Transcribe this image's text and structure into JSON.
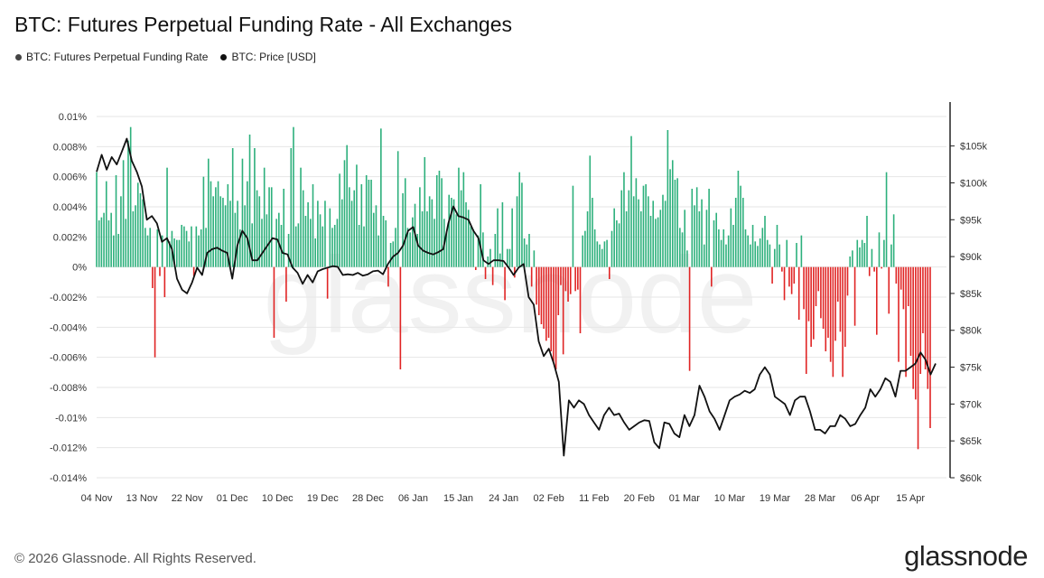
{
  "header": {
    "title": "BTC: Futures Perpetual Funding Rate - All Exchanges"
  },
  "legend": [
    {
      "label": "BTC: Futures Perpetual Funding Rate",
      "color": "#444444"
    },
    {
      "label": "BTC: Price [USD]",
      "color": "#111111"
    }
  ],
  "footer": {
    "copyright": "© 2026 Glassnode. All Rights Reserved.",
    "brand": "glassnode",
    "watermark": "glassnode"
  },
  "colors": {
    "positive": "#2db07c",
    "negative": "#e02424",
    "price": "#111111",
    "grid": "#e6e6e6"
  },
  "chart_data": {
    "type": "bar",
    "title": "BTC: Futures Perpetual Funding Rate - All Exchanges",
    "x_tick_labels": [
      "04 Nov",
      "13 Nov",
      "22 Nov",
      "01 Dec",
      "10 Dec",
      "19 Dec",
      "28 Dec",
      "06 Jan",
      "15 Jan",
      "24 Jan",
      "02 Feb",
      "11 Feb",
      "20 Feb",
      "01 Mar",
      "10 Mar",
      "19 Mar",
      "28 Mar",
      "06 Apr",
      "15 Apr"
    ],
    "x_range": [
      "04 Nov",
      "20 Apr"
    ],
    "left_axis": {
      "ylim": [
        -0.014,
        0.01
      ],
      "ticks": [
        0.01,
        0.008,
        0.006,
        0.004,
        0.002,
        0,
        -0.002,
        -0.004,
        -0.006,
        -0.008,
        -0.01,
        -0.012,
        -0.014
      ],
      "tick_labels": [
        "0.01%",
        "0.008%",
        "0.006%",
        "0.004%",
        "0.002%",
        "0%",
        "-0.002%",
        "-0.004%",
        "-0.006%",
        "-0.008%",
        "-0.01%",
        "-0.012%",
        "-0.014%"
      ]
    },
    "right_axis": {
      "ylim": [
        60000,
        109000
      ],
      "ticks": [
        105000,
        100000,
        95000,
        90000,
        85000,
        80000,
        75000,
        70000,
        65000,
        60000
      ],
      "tick_labels": [
        "$105k",
        "$100k",
        "$95k",
        "$90k",
        "$85k",
        "$80k",
        "$75k",
        "$70k",
        "$65k",
        "$60k"
      ]
    },
    "grid": true,
    "series": [
      {
        "name": "BTC: Futures Perpetual Funding Rate",
        "type": "bar",
        "axis": "left",
        "values": [
          0.0063,
          0.0031,
          0.0033,
          0.0036,
          0.0057,
          0.0031,
          0.0036,
          0.0021,
          0.0061,
          0.0022,
          0.0047,
          0.0071,
          0.0032,
          0.0084,
          0.0093,
          0.0037,
          0.0041,
          0.0056,
          0.0049,
          0.0045,
          0.0026,
          0.0021,
          0.0026,
          -0.0014,
          -0.006,
          0.0025,
          -0.0006,
          0.0021,
          -0.002,
          0.0066,
          0.0017,
          0.0024,
          0.0019,
          0.0018,
          0.0018,
          0.0028,
          0.0027,
          0.0024,
          0.0017,
          0.0027,
          -0.0006,
          0.0027,
          0.0021,
          0.0025,
          0.006,
          0.0026,
          0.0072,
          0.0057,
          0.0047,
          0.0053,
          0.0057,
          0.0047,
          0.0046,
          0.0041,
          0.0055,
          0.0044,
          0.0079,
          0.0036,
          0.0044,
          0.0025,
          0.0072,
          0.0041,
          0.0057,
          0.0088,
          0.0029,
          0.0079,
          0.0051,
          0.0047,
          0.0032,
          0.0066,
          0.0035,
          0.0053,
          0.0053,
          -0.0047,
          0.0032,
          0.0036,
          0.0028,
          0.0052,
          -0.0023,
          0.0022,
          0.0079,
          0.0093,
          0.0027,
          0.0029,
          0.0066,
          0.0051,
          0.0034,
          0.0043,
          0.0032,
          0.0055,
          0.0019,
          0.0044,
          0.0035,
          0.0027,
          0.0044,
          -0.0021,
          0.0039,
          0.0026,
          0.0028,
          0.0032,
          0.0062,
          0.0045,
          0.0071,
          0.0081,
          0.0053,
          0.0044,
          0.0051,
          0.0068,
          0.0028,
          0.0055,
          0.0027,
          0.0061,
          0.0058,
          0.0058,
          0.0036,
          0.0041,
          0.0021,
          0.0092,
          0.0034,
          0.0031,
          -0.0013,
          0.0016,
          0.0017,
          0.0026,
          0.0077,
          -0.0068,
          0.0049,
          0.0059,
          0.0026,
          0.0023,
          0.0033,
          0.0042,
          0.0022,
          0.0053,
          0.0037,
          0.0073,
          0.0037,
          0.0047,
          0.0045,
          0.0032,
          0.0061,
          0.0064,
          0.0059,
          0.0032,
          0.0023,
          0.0048,
          0.0046,
          0.0045,
          0.0035,
          0.0066,
          0.0051,
          0.0063,
          0.0043,
          0.0038,
          0.0027,
          0.0025,
          -0.0002,
          0.0021,
          0.0055,
          0.0023,
          -0.0008,
          0.0007,
          0.0012,
          -0.0012,
          0.0022,
          0.0039,
          0.0009,
          0.0043,
          -0.0022,
          0.0012,
          0.0012,
          0.0039,
          -0.0007,
          0.0047,
          0.0063,
          0.0056,
          0.0019,
          0.0015,
          0.0022,
          -0.0013,
          0.0011,
          -0.0025,
          -0.0032,
          -0.0038,
          -0.0041,
          -0.0049,
          -0.0047,
          -0.0056,
          -0.0063,
          -0.0068,
          -0.0032,
          -0.0012,
          -0.0058,
          -0.0016,
          -0.0023,
          -0.0018,
          0.0054,
          -0.0016,
          -0.0015,
          -0.0044,
          0.0021,
          0.0024,
          0.0037,
          0.0074,
          0.0046,
          0.0025,
          0.0017,
          0.0015,
          0.0012,
          0.0017,
          0.0018,
          -0.0008,
          0.0024,
          0.0039,
          0.0031,
          0.0029,
          0.0051,
          0.0063,
          0.0037,
          0.0051,
          0.0087,
          0.0047,
          0.0059,
          0.0045,
          0.0037,
          0.0054,
          0.0055,
          0.0047,
          0.0034,
          0.0044,
          0.0032,
          0.0033,
          0.0038,
          0.0048,
          0.0044,
          0.0091,
          0.0065,
          0.0071,
          0.0058,
          0.0059,
          0.0026,
          0.0023,
          0.0038,
          0.0011,
          -0.0069,
          0.0052,
          0.0041,
          0.0053,
          0.0037,
          0.0045,
          0.0015,
          0.0038,
          0.0052,
          -0.0013,
          0.0031,
          0.0036,
          0.0025,
          0.0018,
          0.0025,
          0.0015,
          0.0021,
          0.0039,
          0.0028,
          0.0046,
          0.0064,
          0.0054,
          0.0046,
          0.0025,
          0.0021,
          0.0015,
          0.0028,
          0.0017,
          0.0014,
          0.0019,
          0.0026,
          0.0034,
          0.0018,
          0.0015,
          -0.0011,
          0.0012,
          0.0028,
          0.0015,
          -0.0003,
          -0.0022,
          0.0018,
          -0.0013,
          -0.0018,
          -0.0011,
          0.0016,
          -0.0035,
          0.0021,
          -0.0028,
          -0.0071,
          -0.0036,
          -0.0053,
          -0.0048,
          -0.0026,
          -0.0016,
          -0.0034,
          -0.0041,
          -0.0056,
          -0.0047,
          -0.0063,
          -0.0073,
          -0.0049,
          -0.0023,
          -0.0043,
          -0.0073,
          -0.0053,
          -0.0019,
          0.0007,
          0.0011,
          -0.0039,
          0.0018,
          0.0013,
          0.0018,
          0.0016,
          0.0034,
          -0.0006,
          0.0012,
          -0.0003,
          -0.0045,
          0.0023,
          -0.0001,
          0.0018,
          0.0063,
          -0.0031,
          0.0015,
          0.0035,
          -0.0011,
          -0.0063,
          -0.0015,
          -0.0028,
          -0.0073,
          -0.0026,
          -0.0059,
          -0.0081,
          -0.0088,
          -0.0121,
          -0.0071,
          -0.0044,
          -0.0068,
          -0.0081,
          -0.0107
        ],
        "values_note_removed": null
      },
      {
        "name": "BTC: Price [USD]",
        "type": "line",
        "axis": "right",
        "points": [
          [
            "04 Nov",
            101500
          ],
          [
            "05 Nov",
            103800
          ],
          [
            "06 Nov",
            101800
          ],
          [
            "07 Nov",
            103500
          ],
          [
            "08 Nov",
            102500
          ],
          [
            "09 Nov",
            104200
          ],
          [
            "10 Nov",
            106000
          ],
          [
            "11 Nov",
            103000
          ],
          [
            "12 Nov",
            101500
          ],
          [
            "13 Nov",
            99500
          ],
          [
            "14 Nov",
            95000
          ],
          [
            "15 Nov",
            95500
          ],
          [
            "16 Nov",
            94500
          ],
          [
            "17 Nov",
            92000
          ],
          [
            "18 Nov",
            92500
          ],
          [
            "19 Nov",
            91000
          ],
          [
            "20 Nov",
            87000
          ],
          [
            "21 Nov",
            85500
          ],
          [
            "22 Nov",
            85000
          ],
          [
            "23 Nov",
            86500
          ],
          [
            "24 Nov",
            88500
          ],
          [
            "25 Nov",
            87500
          ],
          [
            "26 Nov",
            90500
          ],
          [
            "27 Nov",
            91000
          ],
          [
            "28 Nov",
            91200
          ],
          [
            "29 Nov",
            90800
          ],
          [
            "30 Nov",
            90500
          ],
          [
            "01 Dec",
            87000
          ],
          [
            "02 Dec",
            91500
          ],
          [
            "03 Dec",
            93500
          ],
          [
            "04 Dec",
            92500
          ],
          [
            "05 Dec",
            89500
          ],
          [
            "06 Dec",
            89500
          ],
          [
            "07 Dec",
            90500
          ],
          [
            "08 Dec",
            91500
          ],
          [
            "09 Dec",
            92500
          ],
          [
            "10 Dec",
            92300
          ],
          [
            "11 Dec",
            90500
          ],
          [
            "12 Dec",
            90300
          ],
          [
            "13 Dec",
            88500
          ],
          [
            "14 Dec",
            87800
          ],
          [
            "15 Dec",
            86300
          ],
          [
            "16 Dec",
            87500
          ],
          [
            "17 Dec",
            86500
          ],
          [
            "18 Dec",
            88000
          ],
          [
            "19 Dec",
            88300
          ],
          [
            "20 Dec",
            88500
          ],
          [
            "21 Dec",
            88700
          ],
          [
            "22 Dec",
            88600
          ],
          [
            "23 Dec",
            87500
          ],
          [
            "24 Dec",
            87600
          ],
          [
            "25 Dec",
            87500
          ],
          [
            "26 Dec",
            87800
          ],
          [
            "27 Dec",
            87400
          ],
          [
            "28 Dec",
            87600
          ],
          [
            "29 Dec",
            88000
          ],
          [
            "30 Dec",
            88100
          ],
          [
            "31 Dec",
            87600
          ],
          [
            "01 Jan",
            89000
          ],
          [
            "02 Jan",
            90000
          ],
          [
            "03 Jan",
            90500
          ],
          [
            "04 Jan",
            91500
          ],
          [
            "05 Jan",
            93500
          ],
          [
            "06 Jan",
            94000
          ],
          [
            "07 Jan",
            91500
          ],
          [
            "08 Jan",
            90800
          ],
          [
            "09 Jan",
            90500
          ],
          [
            "10 Jan",
            90300
          ],
          [
            "11 Jan",
            90600
          ],
          [
            "12 Jan",
            91000
          ],
          [
            "13 Jan",
            94500
          ],
          [
            "14 Jan",
            96800
          ],
          [
            "15 Jan",
            95500
          ],
          [
            "16 Jan",
            95300
          ],
          [
            "17 Jan",
            95000
          ],
          [
            "18 Jan",
            93500
          ],
          [
            "19 Jan",
            92500
          ],
          [
            "20 Jan",
            89500
          ],
          [
            "21 Jan",
            89000
          ],
          [
            "22 Jan",
            89500
          ],
          [
            "23 Jan",
            89500
          ],
          [
            "24 Jan",
            89400
          ],
          [
            "25 Jan",
            88500
          ],
          [
            "26 Jan",
            87500
          ],
          [
            "27 Jan",
            88500
          ],
          [
            "28 Jan",
            89000
          ],
          [
            "29 Jan",
            84500
          ],
          [
            "30 Jan",
            83500
          ],
          [
            "31 Jan",
            78500
          ],
          [
            "01 Feb",
            76500
          ],
          [
            "02 Feb",
            77500
          ],
          [
            "03 Feb",
            75500
          ],
          [
            "04 Feb",
            73000
          ],
          [
            "05 Feb",
            63000
          ],
          [
            "06 Feb",
            70500
          ],
          [
            "07 Feb",
            69500
          ],
          [
            "08 Feb",
            70500
          ],
          [
            "09 Feb",
            70000
          ],
          [
            "10 Feb",
            68500
          ],
          [
            "11 Feb",
            67500
          ],
          [
            "12 Feb",
            66500
          ],
          [
            "13 Feb",
            68500
          ],
          [
            "14 Feb",
            69500
          ],
          [
            "15 Feb",
            68500
          ],
          [
            "16 Feb",
            68700
          ],
          [
            "17 Feb",
            67500
          ],
          [
            "18 Feb",
            66500
          ],
          [
            "19 Feb",
            67000
          ],
          [
            "20 Feb",
            67500
          ],
          [
            "21 Feb",
            67800
          ],
          [
            "22 Feb",
            67700
          ],
          [
            "23 Feb",
            64800
          ],
          [
            "24 Feb",
            64000
          ],
          [
            "25 Feb",
            67500
          ],
          [
            "26 Feb",
            67300
          ],
          [
            "27 Feb",
            66000
          ],
          [
            "28 Feb",
            65500
          ],
          [
            "01 Mar",
            68500
          ],
          [
            "02 Mar",
            67000
          ],
          [
            "03 Mar",
            68500
          ],
          [
            "04 Mar",
            72500
          ],
          [
            "05 Mar",
            71000
          ],
          [
            "06 Mar",
            69000
          ],
          [
            "07 Mar",
            68000
          ],
          [
            "08 Mar",
            66500
          ],
          [
            "09 Mar",
            68500
          ],
          [
            "10 Mar",
            70500
          ],
          [
            "11 Mar",
            71000
          ],
          [
            "12 Mar",
            71300
          ],
          [
            "13 Mar",
            71800
          ],
          [
            "14 Mar",
            71500
          ],
          [
            "15 Mar",
            72000
          ],
          [
            "16 Mar",
            74000
          ],
          [
            "17 Mar",
            75000
          ],
          [
            "18 Mar",
            74000
          ],
          [
            "19 Mar",
            71000
          ],
          [
            "20 Mar",
            70500
          ],
          [
            "21 Mar",
            70000
          ],
          [
            "22 Mar",
            68500
          ],
          [
            "23 Mar",
            70500
          ],
          [
            "24 Mar",
            71000
          ],
          [
            "25 Mar",
            71000
          ],
          [
            "26 Mar",
            69000
          ],
          [
            "27 Mar",
            66500
          ],
          [
            "28 Mar",
            66500
          ],
          [
            "29 Mar",
            66000
          ],
          [
            "30 Mar",
            67000
          ],
          [
            "31 Mar",
            67000
          ],
          [
            "01 Apr",
            68500
          ],
          [
            "02 Apr",
            68000
          ],
          [
            "03 Apr",
            67000
          ],
          [
            "04 Apr",
            67300
          ],
          [
            "05 Apr",
            68500
          ],
          [
            "06 Apr",
            69500
          ],
          [
            "07 Apr",
            72000
          ],
          [
            "08 Apr",
            71000
          ],
          [
            "09 Apr",
            72000
          ],
          [
            "10 Apr",
            73500
          ],
          [
            "11 Apr",
            73000
          ],
          [
            "12 Apr",
            71000
          ],
          [
            "13 Apr",
            74500
          ],
          [
            "14 Apr",
            74500
          ],
          [
            "15 Apr",
            75000
          ],
          [
            "16 Apr",
            75500
          ],
          [
            "17 Apr",
            77000
          ],
          [
            "18 Apr",
            76000
          ],
          [
            "19 Apr",
            74000
          ],
          [
            "20 Apr",
            75500
          ]
        ]
      }
    ]
  }
}
